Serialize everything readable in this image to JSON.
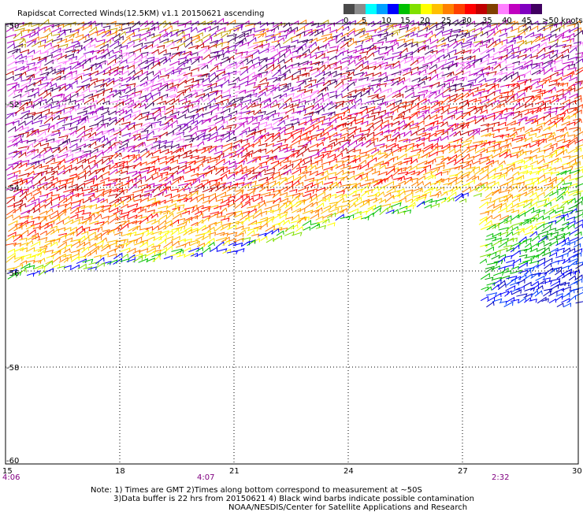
{
  "title": "Rapidscat Corrected Winds(12.5KM) v1.1 20150621 ascending",
  "legend": {
    "colors": [
      "#4a4a4a",
      "#8c8c8c",
      "#00ffff",
      "#00a0ff",
      "#0000ff",
      "#00c000",
      "#80e000",
      "#ffff00",
      "#ffc000",
      "#ff8000",
      "#ff4000",
      "#ff0000",
      "#c00000",
      "#804000",
      "#ff80ff",
      "#c000c0",
      "#8000c0",
      "#400060"
    ],
    "labels": [
      "0",
      "5",
      "10",
      "15",
      "20",
      "25",
      "30",
      "35",
      "40",
      "45",
      ">50 knots"
    ]
  },
  "lat_labels": [
    "-50",
    "-52",
    "-54",
    "-56",
    "-58",
    "-60"
  ],
  "lon_labels": [
    "15",
    "18",
    "21",
    "24",
    "27",
    "30"
  ],
  "time_labels": [
    "4:06",
    "4:07",
    "2:32"
  ],
  "notes": [
    "Note: 1) Times are GMT 2)Times along bottom correspond to measurement at ~50S",
    "3)Data buffer is 22 hrs from 20150621 4) Black wind barbs indicate possible contamination",
    "NOAA/NESDIS/Center for Satellite Applications and Research"
  ]
}
